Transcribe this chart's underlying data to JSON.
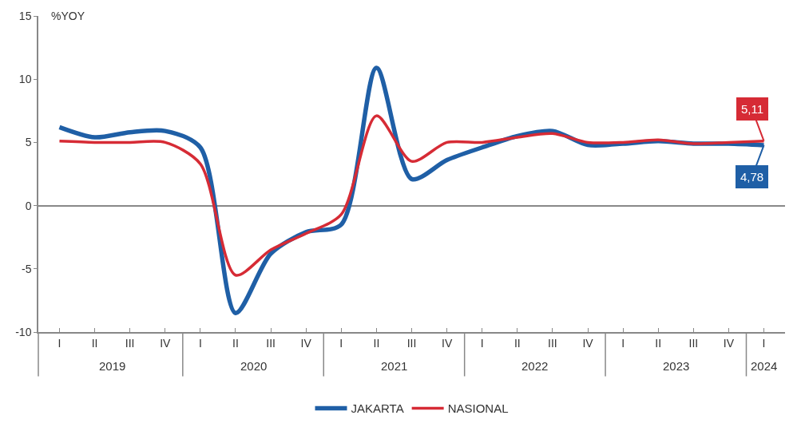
{
  "chart_data": {
    "type": "line",
    "ylabel": "%YOY",
    "categories": [
      "I",
      "II",
      "III",
      "IV",
      "I",
      "II",
      "III",
      "IV",
      "I",
      "II",
      "III",
      "IV",
      "I",
      "II",
      "III",
      "IV",
      "I",
      "II",
      "III",
      "IV",
      "I"
    ],
    "annotations": [
      "2019",
      "2020",
      "2021",
      "2022",
      "2023",
      "2024"
    ],
    "series": [
      {
        "name": "JAKARTA",
        "color": "#1f5fa6",
        "values": [
          6.2,
          5.4,
          5.8,
          5.9,
          4.6,
          -8.5,
          -3.8,
          -2.1,
          -1.5,
          10.9,
          2.1,
          3.6,
          4.6,
          5.5,
          5.9,
          4.8,
          4.9,
          5.1,
          4.9,
          4.9,
          4.78
        ],
        "value_labels": [
          null,
          null,
          null,
          null,
          null,
          null,
          null,
          null,
          null,
          null,
          null,
          null,
          null,
          null,
          null,
          null,
          null,
          null,
          null,
          null,
          "4,78"
        ]
      },
      {
        "name": "NASIONAL",
        "color": "#d62b35",
        "values": [
          5.1,
          5.0,
          5.0,
          5.0,
          3.3,
          -5.5,
          -3.5,
          -2.2,
          -0.7,
          7.1,
          3.5,
          5.0,
          5.0,
          5.4,
          5.7,
          5.0,
          5.0,
          5.2,
          4.9,
          5.0,
          5.11
        ],
        "value_labels": [
          null,
          null,
          null,
          null,
          null,
          null,
          null,
          null,
          null,
          null,
          null,
          null,
          null,
          null,
          null,
          null,
          null,
          null,
          null,
          null,
          "5,11"
        ]
      }
    ],
    "ylim": [
      -10,
      15
    ],
    "yticks": [
      -10,
      -5,
      0,
      5,
      10,
      15
    ],
    "legend": "bottom",
    "marker": "none",
    "line_style": "solid"
  }
}
